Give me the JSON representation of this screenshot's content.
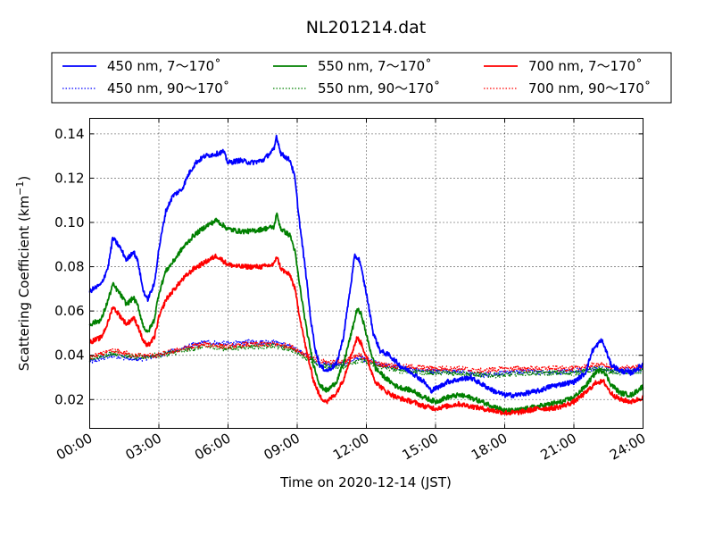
{
  "chart_data": {
    "type": "line",
    "title": "NL201214.dat",
    "xlabel": "Time on 2020-12-14 (JST)",
    "ylabel": "Scattering Coefficient (km",
    "ylabel_sup": "−1",
    "ylabel_end": ")",
    "xlim": [
      0,
      24
    ],
    "ylim": [
      0.007,
      0.147
    ],
    "x_ticks": [
      0,
      3,
      6,
      9,
      12,
      15,
      18,
      21,
      24
    ],
    "x_tick_labels": [
      "00:00",
      "03:00",
      "06:00",
      "09:00",
      "12:00",
      "15:00",
      "18:00",
      "21:00",
      "24:00"
    ],
    "y_ticks": [
      0.02,
      0.04,
      0.06,
      0.08,
      0.1,
      0.12,
      0.14
    ],
    "y_tick_labels": [
      "0.02",
      "0.04",
      "0.06",
      "0.08",
      "0.10",
      "0.12",
      "0.14"
    ],
    "grid": true,
    "legend_position": "top, above plot",
    "series": [
      {
        "name": "450 nm, 7～170˚",
        "color": "#0000ff",
        "style": "solid",
        "points": [
          [
            0,
            0.069
          ],
          [
            0.5,
            0.072
          ],
          [
            0.8,
            0.08
          ],
          [
            1,
            0.093
          ],
          [
            1.3,
            0.089
          ],
          [
            1.6,
            0.083
          ],
          [
            1.9,
            0.087
          ],
          [
            2.1,
            0.082
          ],
          [
            2.3,
            0.07
          ],
          [
            2.5,
            0.065
          ],
          [
            2.8,
            0.072
          ],
          [
            3,
            0.088
          ],
          [
            3.3,
            0.105
          ],
          [
            3.6,
            0.112
          ],
          [
            4,
            0.115
          ],
          [
            4.3,
            0.122
          ],
          [
            4.6,
            0.127
          ],
          [
            5,
            0.13
          ],
          [
            5.5,
            0.131
          ],
          [
            5.8,
            0.132
          ],
          [
            6,
            0.127
          ],
          [
            6.5,
            0.128
          ],
          [
            7,
            0.127
          ],
          [
            7.5,
            0.128
          ],
          [
            8,
            0.133
          ],
          [
            8.1,
            0.139
          ],
          [
            8.3,
            0.131
          ],
          [
            8.7,
            0.128
          ],
          [
            8.9,
            0.12
          ],
          [
            9.1,
            0.1
          ],
          [
            9.4,
            0.075
          ],
          [
            9.6,
            0.055
          ],
          [
            9.8,
            0.042
          ],
          [
            10,
            0.035
          ],
          [
            10.3,
            0.033
          ],
          [
            10.7,
            0.036
          ],
          [
            11,
            0.048
          ],
          [
            11.3,
            0.07
          ],
          [
            11.5,
            0.085
          ],
          [
            11.7,
            0.083
          ],
          [
            12,
            0.068
          ],
          [
            12.3,
            0.05
          ],
          [
            12.6,
            0.042
          ],
          [
            13,
            0.04
          ],
          [
            13.5,
            0.035
          ],
          [
            14,
            0.032
          ],
          [
            14.5,
            0.028
          ],
          [
            14.8,
            0.024
          ],
          [
            15.2,
            0.026
          ],
          [
            15.5,
            0.028
          ],
          [
            16,
            0.029
          ],
          [
            16.5,
            0.03
          ],
          [
            17,
            0.027
          ],
          [
            17.5,
            0.024
          ],
          [
            18,
            0.022
          ],
          [
            18.5,
            0.022
          ],
          [
            19,
            0.023
          ],
          [
            19.5,
            0.024
          ],
          [
            20,
            0.026
          ],
          [
            20.5,
            0.027
          ],
          [
            21,
            0.028
          ],
          [
            21.5,
            0.032
          ],
          [
            21.8,
            0.042
          ],
          [
            22.2,
            0.047
          ],
          [
            22.4,
            0.042
          ],
          [
            22.6,
            0.036
          ],
          [
            23,
            0.033
          ],
          [
            23.5,
            0.032
          ],
          [
            24,
            0.036
          ]
        ]
      },
      {
        "name": "450 nm, 90～170˚",
        "color": "#0000ff",
        "style": "dotted",
        "points": [
          [
            0,
            0.037
          ],
          [
            1,
            0.04
          ],
          [
            2,
            0.038
          ],
          [
            3,
            0.04
          ],
          [
            4,
            0.043
          ],
          [
            5,
            0.046
          ],
          [
            6,
            0.045
          ],
          [
            7,
            0.046
          ],
          [
            8,
            0.046
          ],
          [
            8.7,
            0.044
          ],
          [
            9.4,
            0.04
          ],
          [
            10,
            0.036
          ],
          [
            11,
            0.036
          ],
          [
            11.7,
            0.039
          ],
          [
            12.5,
            0.036
          ],
          [
            13.5,
            0.034
          ],
          [
            15,
            0.033
          ],
          [
            16,
            0.033
          ],
          [
            17,
            0.031
          ],
          [
            18,
            0.032
          ],
          [
            19,
            0.033
          ],
          [
            20,
            0.032
          ],
          [
            21,
            0.033
          ],
          [
            22,
            0.034
          ],
          [
            23,
            0.033
          ],
          [
            24,
            0.034
          ]
        ]
      },
      {
        "name": "550 nm, 7～170˚",
        "color": "#008000",
        "style": "solid",
        "points": [
          [
            0,
            0.054
          ],
          [
            0.5,
            0.056
          ],
          [
            0.8,
            0.065
          ],
          [
            1,
            0.072
          ],
          [
            1.3,
            0.068
          ],
          [
            1.6,
            0.063
          ],
          [
            1.9,
            0.066
          ],
          [
            2.1,
            0.062
          ],
          [
            2.3,
            0.054
          ],
          [
            2.5,
            0.05
          ],
          [
            2.8,
            0.056
          ],
          [
            3,
            0.068
          ],
          [
            3.3,
            0.078
          ],
          [
            3.6,
            0.082
          ],
          [
            4,
            0.088
          ],
          [
            4.5,
            0.094
          ],
          [
            5,
            0.098
          ],
          [
            5.5,
            0.101
          ],
          [
            6,
            0.097
          ],
          [
            6.5,
            0.096
          ],
          [
            7,
            0.096
          ],
          [
            7.5,
            0.097
          ],
          [
            8,
            0.098
          ],
          [
            8.1,
            0.104
          ],
          [
            8.3,
            0.097
          ],
          [
            8.7,
            0.094
          ],
          [
            8.9,
            0.087
          ],
          [
            9.1,
            0.072
          ],
          [
            9.4,
            0.052
          ],
          [
            9.7,
            0.036
          ],
          [
            10,
            0.026
          ],
          [
            10.3,
            0.024
          ],
          [
            10.7,
            0.028
          ],
          [
            11,
            0.036
          ],
          [
            11.4,
            0.052
          ],
          [
            11.6,
            0.061
          ],
          [
            11.8,
            0.058
          ],
          [
            12.1,
            0.045
          ],
          [
            12.4,
            0.034
          ],
          [
            12.8,
            0.03
          ],
          [
            13.3,
            0.026
          ],
          [
            14,
            0.024
          ],
          [
            14.5,
            0.021
          ],
          [
            15,
            0.019
          ],
          [
            15.5,
            0.021
          ],
          [
            16,
            0.022
          ],
          [
            16.5,
            0.021
          ],
          [
            17,
            0.019
          ],
          [
            17.5,
            0.017
          ],
          [
            18,
            0.015
          ],
          [
            18.5,
            0.015
          ],
          [
            19,
            0.016
          ],
          [
            19.5,
            0.017
          ],
          [
            20,
            0.018
          ],
          [
            20.5,
            0.019
          ],
          [
            21,
            0.021
          ],
          [
            21.5,
            0.026
          ],
          [
            22,
            0.033
          ],
          [
            22.3,
            0.033
          ],
          [
            22.6,
            0.027
          ],
          [
            23,
            0.023
          ],
          [
            23.5,
            0.022
          ],
          [
            24,
            0.026
          ]
        ]
      },
      {
        "name": "550 nm, 90～170˚",
        "color": "#008000",
        "style": "dotted",
        "points": [
          [
            0,
            0.038
          ],
          [
            1,
            0.041
          ],
          [
            2,
            0.039
          ],
          [
            3,
            0.04
          ],
          [
            4,
            0.042
          ],
          [
            5,
            0.044
          ],
          [
            6,
            0.043
          ],
          [
            7,
            0.044
          ],
          [
            8,
            0.044
          ],
          [
            8.7,
            0.043
          ],
          [
            9.4,
            0.039
          ],
          [
            10,
            0.035
          ],
          [
            11,
            0.035
          ],
          [
            11.7,
            0.038
          ],
          [
            12.5,
            0.035
          ],
          [
            13.5,
            0.033
          ],
          [
            15,
            0.032
          ],
          [
            16,
            0.032
          ],
          [
            17,
            0.031
          ],
          [
            18,
            0.031
          ],
          [
            19,
            0.032
          ],
          [
            20,
            0.032
          ],
          [
            21,
            0.032
          ],
          [
            22,
            0.034
          ],
          [
            23,
            0.032
          ],
          [
            24,
            0.033
          ]
        ]
      },
      {
        "name": "700 nm, 7～170˚",
        "color": "#ff0000",
        "style": "solid",
        "points": [
          [
            0,
            0.046
          ],
          [
            0.5,
            0.048
          ],
          [
            0.8,
            0.055
          ],
          [
            1,
            0.062
          ],
          [
            1.3,
            0.058
          ],
          [
            1.6,
            0.054
          ],
          [
            1.9,
            0.057
          ],
          [
            2.1,
            0.053
          ],
          [
            2.3,
            0.047
          ],
          [
            2.5,
            0.044
          ],
          [
            2.8,
            0.048
          ],
          [
            3,
            0.057
          ],
          [
            3.3,
            0.065
          ],
          [
            3.6,
            0.069
          ],
          [
            4,
            0.074
          ],
          [
            4.5,
            0.079
          ],
          [
            5,
            0.082
          ],
          [
            5.5,
            0.085
          ],
          [
            6,
            0.081
          ],
          [
            6.5,
            0.08
          ],
          [
            7,
            0.08
          ],
          [
            7.5,
            0.08
          ],
          [
            8,
            0.081
          ],
          [
            8.1,
            0.085
          ],
          [
            8.3,
            0.079
          ],
          [
            8.7,
            0.076
          ],
          [
            8.9,
            0.07
          ],
          [
            9.1,
            0.058
          ],
          [
            9.4,
            0.042
          ],
          [
            9.7,
            0.029
          ],
          [
            10,
            0.021
          ],
          [
            10.3,
            0.019
          ],
          [
            10.7,
            0.023
          ],
          [
            11,
            0.029
          ],
          [
            11.4,
            0.042
          ],
          [
            11.6,
            0.048
          ],
          [
            11.8,
            0.045
          ],
          [
            12.1,
            0.036
          ],
          [
            12.4,
            0.028
          ],
          [
            12.8,
            0.024
          ],
          [
            13.3,
            0.021
          ],
          [
            14,
            0.019
          ],
          [
            14.5,
            0.017
          ],
          [
            15,
            0.016
          ],
          [
            15.5,
            0.017
          ],
          [
            16,
            0.018
          ],
          [
            16.5,
            0.017
          ],
          [
            17,
            0.016
          ],
          [
            17.5,
            0.015
          ],
          [
            18,
            0.014
          ],
          [
            18.5,
            0.014
          ],
          [
            19,
            0.015
          ],
          [
            19.5,
            0.016
          ],
          [
            20,
            0.016
          ],
          [
            20.5,
            0.017
          ],
          [
            21,
            0.019
          ],
          [
            21.5,
            0.023
          ],
          [
            22,
            0.028
          ],
          [
            22.3,
            0.028
          ],
          [
            22.6,
            0.023
          ],
          [
            23,
            0.02
          ],
          [
            23.5,
            0.019
          ],
          [
            24,
            0.021
          ]
        ]
      },
      {
        "name": "700 nm, 90～170˚",
        "color": "#ff0000",
        "style": "dotted",
        "points": [
          [
            0,
            0.039
          ],
          [
            1,
            0.042
          ],
          [
            2,
            0.04
          ],
          [
            3,
            0.04
          ],
          [
            4,
            0.043
          ],
          [
            5,
            0.045
          ],
          [
            6,
            0.044
          ],
          [
            7,
            0.045
          ],
          [
            8,
            0.045
          ],
          [
            8.7,
            0.044
          ],
          [
            9.4,
            0.04
          ],
          [
            10,
            0.037
          ],
          [
            11,
            0.037
          ],
          [
            11.7,
            0.04
          ],
          [
            12.5,
            0.036
          ],
          [
            13.5,
            0.035
          ],
          [
            15,
            0.034
          ],
          [
            16,
            0.034
          ],
          [
            17,
            0.033
          ],
          [
            18,
            0.034
          ],
          [
            19,
            0.034
          ],
          [
            20,
            0.034
          ],
          [
            21,
            0.034
          ],
          [
            22,
            0.036
          ],
          [
            23,
            0.034
          ],
          [
            24,
            0.035
          ]
        ]
      }
    ]
  }
}
